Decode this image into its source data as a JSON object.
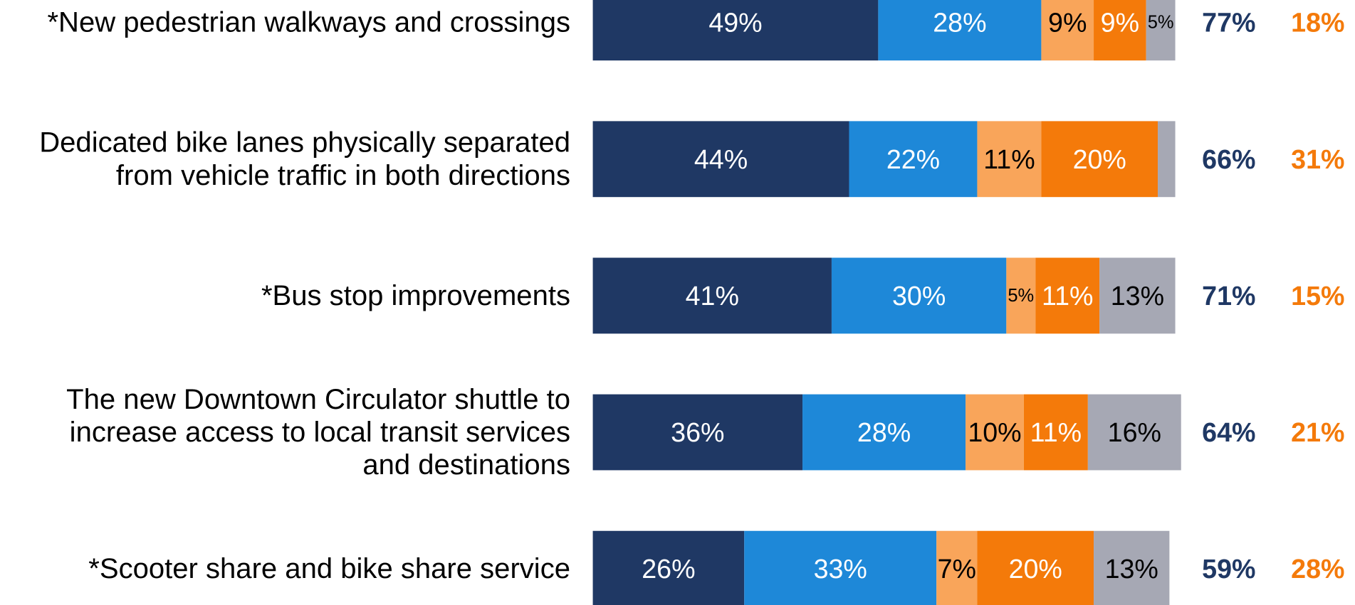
{
  "chart_data": {
    "type": "stacked-bar-horizontal",
    "categories": [
      [
        "*New pedestrian walkways and crossings"
      ],
      [
        "Dedicated bike lanes physically separated",
        "from vehicle traffic in both directions"
      ],
      [
        "*Bus stop improvements"
      ],
      [
        "The new Downtown Circulator shuttle to",
        "increase access to local transit services",
        "and destinations"
      ],
      [
        "*Scooter share and bike share service"
      ]
    ],
    "xlim": [
      0,
      100
    ],
    "series": [
      {
        "color": "#1f3864",
        "label_color": "#ffffff",
        "values": [
          49,
          44,
          41,
          36,
          26
        ],
        "value_labels": [
          "49%",
          "44%",
          "41%",
          "36%",
          "26%"
        ]
      },
      {
        "color": "#1e88d8",
        "label_color": "#ffffff",
        "values": [
          28,
          22,
          30,
          28,
          33
        ],
        "value_labels": [
          "28%",
          "22%",
          "30%",
          "28%",
          "33%"
        ]
      },
      {
        "color": "#f9a55a",
        "label_color": "#000000",
        "values": [
          9,
          11,
          5,
          10,
          7
        ],
        "value_labels": [
          "9%",
          "11%",
          "5%",
          "10%",
          "7%"
        ]
      },
      {
        "color": "#f47a0a",
        "label_color": "#ffffff",
        "values": [
          9,
          20,
          11,
          11,
          20
        ],
        "value_labels": [
          "9%",
          "20%",
          "11%",
          "11%",
          "20%"
        ]
      },
      {
        "color": "#a6a8b4",
        "label_color": "#000000",
        "values": [
          5,
          3,
          13,
          16,
          13
        ],
        "value_labels": [
          "5%",
          null,
          "13%",
          "16%",
          "13%"
        ]
      }
    ],
    "totals": [
      {
        "color": "#1f3864",
        "values": [
          77,
          66,
          71,
          64,
          59
        ],
        "value_labels": [
          "77%",
          "66%",
          "71%",
          "64%",
          "59%"
        ]
      },
      {
        "color": "#f47a0a",
        "values": [
          18,
          31,
          15,
          21,
          28
        ],
        "value_labels": [
          "18%",
          "31%",
          "15%",
          "21%",
          "28%"
        ]
      }
    ]
  }
}
